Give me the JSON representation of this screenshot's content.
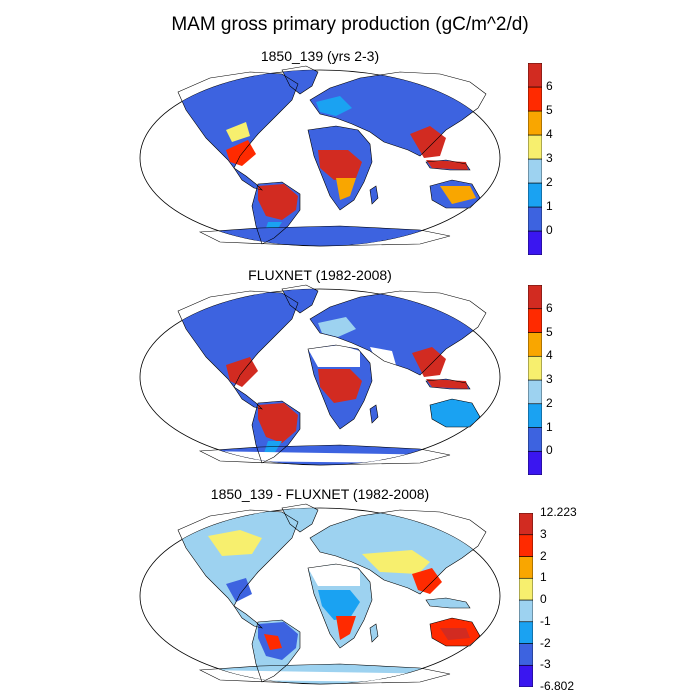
{
  "title": "MAM gross primary production (gC/m^2/d)",
  "panels": [
    {
      "id": "model",
      "title": "1850_139 (yrs 2-3)",
      "colorbar": {
        "colors": [
          "#3a16f0",
          "#3d63e0",
          "#1aa2f2",
          "#9dd2f0",
          "#f7ef6e",
          "#f9a600",
          "#ff2a00",
          "#d22b21"
        ],
        "labels": [
          "0",
          "1",
          "2",
          "3",
          "4",
          "5",
          "6"
        ]
      }
    },
    {
      "id": "obs",
      "title": "FLUXNET (1982-2008)",
      "colorbar": {
        "colors": [
          "#3a16f0",
          "#3d63e0",
          "#1aa2f2",
          "#9dd2f0",
          "#f7ef6e",
          "#f9a600",
          "#ff2a00",
          "#d22b21"
        ],
        "labels": [
          "0",
          "1",
          "2",
          "3",
          "4",
          "5",
          "6"
        ]
      }
    },
    {
      "id": "diff",
      "title": "1850_139 - FLUXNET (1982-2008)",
      "colorbar": {
        "colors": [
          "#3a16f0",
          "#3d63e0",
          "#1aa2f2",
          "#9dd2f0",
          "#f7ef6e",
          "#f9a600",
          "#ff2a00",
          "#d22b21"
        ],
        "labels": [
          "12.223",
          "3",
          "2",
          "1",
          "0",
          "-1",
          "-2",
          "-3",
          "-6.802"
        ]
      }
    }
  ]
}
